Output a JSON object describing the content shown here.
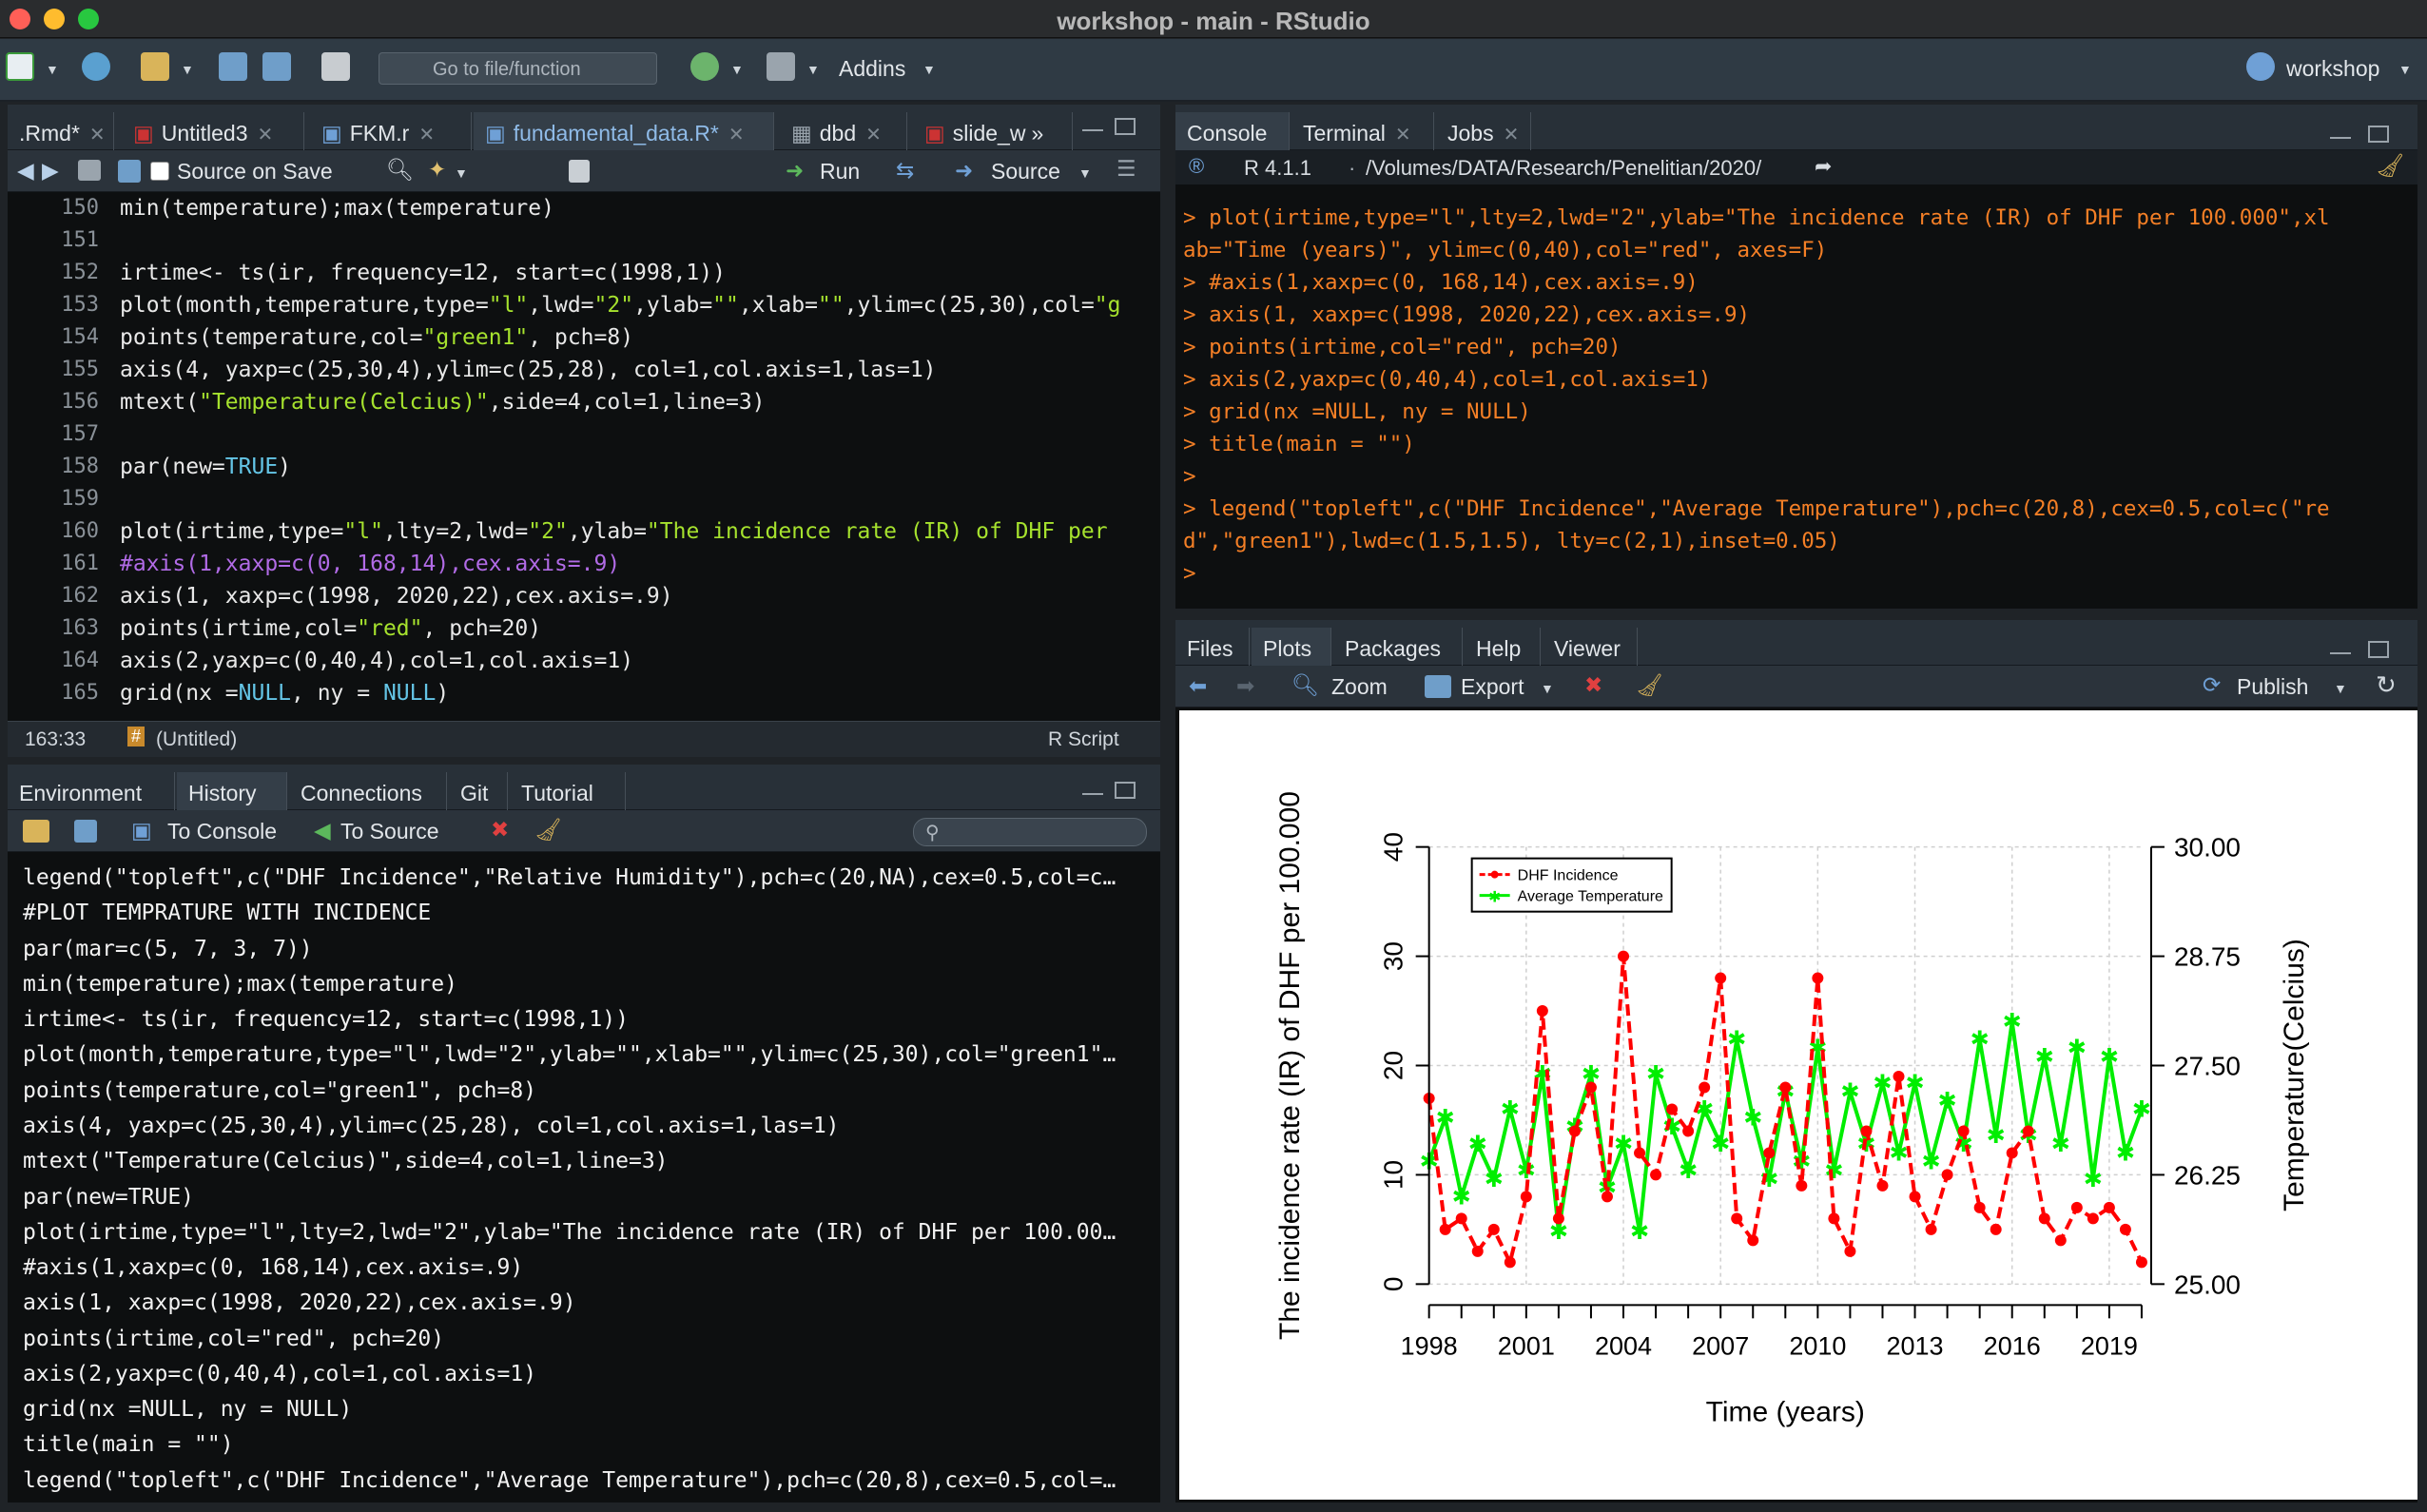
{
  "window": {
    "title": "workshop - main - RStudio"
  },
  "toolbar": {
    "goto_placeholder": "Go to file/function",
    "addins": "Addins",
    "project": "workshop"
  },
  "source": {
    "tabs": [
      ".Rmd*",
      "Untitled3",
      "FKM.r",
      "fundamental_data.R*",
      "dbd",
      "slide_w"
    ],
    "source_on_save": "Source on Save",
    "run": "Run",
    "source": "Source",
    "line_numbers": [
      "150",
      "151",
      "152",
      "153",
      "154",
      "155",
      "156",
      "157",
      "158",
      "159",
      "160",
      "161",
      "162",
      "163",
      "164",
      "165"
    ],
    "cursor": "163:33",
    "scope": "(Untitled)",
    "filetype": "R Script"
  },
  "console": {
    "tabs": [
      "Console",
      "Terminal",
      "Jobs"
    ],
    "r_version": "R 4.1.1",
    "path": "/Volumes/DATA/Research/Penelitian/2020/",
    "lines": [
      "> plot(irtime,type=\"l\",lty=2,lwd=\"2\",ylab=\"The incidence rate (IR) of DHF per 100.000\",xl",
      "ab=\"Time (years)\", ylim=c(0,40),col=\"red\", axes=F)",
      "> #axis(1,xaxp=c(0, 168,14),cex.axis=.9)",
      "> axis(1, xaxp=c(1998, 2020,22),cex.axis=.9)",
      "> points(irtime,col=\"red\", pch=20)",
      "> axis(2,yaxp=c(0,40,4),col=1,col.axis=1)",
      "> grid(nx =NULL, ny = NULL)",
      "> title(main = \"\")",
      ">",
      "> legend(\"topleft\",c(\"DHF Incidence\",\"Average Temperature\"),pch=c(20,8),cex=0.5,col=c(\"re",
      "d\",\"green1\"),lwd=c(1.5,1.5), lty=c(2,1),inset=0.05)",
      ">"
    ]
  },
  "env": {
    "tabs": [
      "Environment",
      "History",
      "Connections",
      "Git",
      "Tutorial"
    ],
    "to_console": "To Console",
    "to_source": "To Source",
    "history": [
      "legend(\"topleft\",c(\"DHF Incidence\",\"Relative Humidity\"),pch=c(20,NA),cex=0.5,col=c…",
      "#PLOT TEMPRATURE WITH INCIDENCE",
      "par(mar=c(5, 7, 3, 7))",
      "min(temperature);max(temperature)",
      "irtime<- ts(ir, frequency=12, start=c(1998,1))",
      "plot(month,temperature,type=\"l\",lwd=\"2\",ylab=\"\",xlab=\"\",ylim=c(25,30),col=\"green1\"…",
      "points(temperature,col=\"green1\", pch=8)",
      "axis(4, yaxp=c(25,30,4),ylim=c(25,28), col=1,col.axis=1,las=1)",
      "mtext(\"Temperature(Celcius)\",side=4,col=1,line=3)",
      "par(new=TRUE)",
      "plot(irtime,type=\"l\",lty=2,lwd=\"2\",ylab=\"The incidence rate (IR) of DHF per 100.00…",
      "#axis(1,xaxp=c(0, 168,14),cex.axis=.9)",
      "axis(1, xaxp=c(1998, 2020,22),cex.axis=.9)",
      "points(irtime,col=\"red\", pch=20)",
      "axis(2,yaxp=c(0,40,4),col=1,col.axis=1)",
      "grid(nx =NULL, ny = NULL)",
      "title(main = \"\")",
      "legend(\"topleft\",c(\"DHF Incidence\",\"Average Temperature\"),pch=c(20,8),cex=0.5,col=…"
    ]
  },
  "files": {
    "tabs": [
      "Files",
      "Plots",
      "Packages",
      "Help",
      "Viewer"
    ],
    "zoom": "Zoom",
    "export": "Export",
    "publish": "Publish"
  },
  "chart_data": {
    "type": "line",
    "xlabel": "Time (years)",
    "ylabel": "The incidence rate (IR) of DHF per 100.000",
    "y2label": "Temperature(Celcius)",
    "xlim": [
      1998,
      2020
    ],
    "ylim": [
      0,
      40
    ],
    "y2lim": [
      25,
      30
    ],
    "xticks": [
      "1998",
      "2001",
      "2004",
      "2007",
      "2010",
      "2013",
      "2016",
      "2019"
    ],
    "yticks": [
      "0",
      "10",
      "20",
      "30",
      "40"
    ],
    "y2ticks": [
      "25.00",
      "26.25",
      "27.50",
      "28.75",
      "30.00"
    ],
    "legend": [
      "DHF Incidence",
      "Average Temperature"
    ],
    "legend_position": "top-left",
    "colors": {
      "incidence": "#ff0000",
      "temperature": "#00ee00"
    },
    "grid": true,
    "series": [
      {
        "name": "DHF Incidence",
        "x": [
          1998.0,
          1998.5,
          1999.0,
          1999.5,
          2000.0,
          2000.5,
          2001.0,
          2001.5,
          2002.0,
          2002.5,
          2003.0,
          2003.5,
          2004.0,
          2004.5,
          2005.0,
          2005.5,
          2006.0,
          2006.5,
          2007.0,
          2007.5,
          2008.0,
          2008.5,
          2009.0,
          2009.5,
          2010.0,
          2010.5,
          2011.0,
          2011.5,
          2012.0,
          2012.5,
          2013.0,
          2013.5,
          2014.0,
          2014.5,
          2015.0,
          2015.5,
          2016.0,
          2016.5,
          2017.0,
          2017.5,
          2018.0,
          2018.5,
          2019.0,
          2019.5,
          2020.0
        ],
        "values": [
          17,
          5,
          6,
          3,
          5,
          2,
          8,
          25,
          6,
          14,
          18,
          8,
          30,
          12,
          10,
          16,
          14,
          18,
          28,
          6,
          4,
          12,
          18,
          9,
          28,
          6,
          3,
          14,
          9,
          19,
          8,
          5,
          10,
          14,
          7,
          5,
          12,
          14,
          6,
          4,
          7,
          6,
          7,
          5,
          2
        ]
      },
      {
        "name": "Average Temperature",
        "x": [
          1998.0,
          1998.5,
          1999.0,
          1999.5,
          2000.0,
          2000.5,
          2001.0,
          2001.5,
          2002.0,
          2002.5,
          2003.0,
          2003.5,
          2004.0,
          2004.5,
          2005.0,
          2005.5,
          2006.0,
          2006.5,
          2007.0,
          2007.5,
          2008.0,
          2008.5,
          2009.0,
          2009.5,
          2010.0,
          2010.5,
          2011.0,
          2011.5,
          2012.0,
          2012.5,
          2013.0,
          2013.5,
          2014.0,
          2014.5,
          2015.0,
          2015.5,
          2016.0,
          2016.5,
          2017.0,
          2017.5,
          2018.0,
          2018.5,
          2019.0,
          2019.5,
          2020.0
        ],
        "values": [
          26.4,
          26.9,
          26.0,
          26.6,
          26.2,
          27.0,
          26.3,
          27.4,
          25.6,
          26.8,
          27.4,
          26.1,
          26.6,
          25.6,
          27.4,
          26.8,
          26.3,
          27.0,
          26.6,
          27.8,
          26.9,
          26.2,
          27.2,
          26.4,
          27.7,
          26.3,
          27.2,
          26.6,
          27.3,
          26.5,
          27.3,
          26.4,
          27.1,
          26.6,
          27.8,
          26.7,
          28.0,
          26.7,
          27.6,
          26.6,
          27.7,
          26.2,
          27.6,
          26.5,
          27.0
        ]
      }
    ]
  }
}
